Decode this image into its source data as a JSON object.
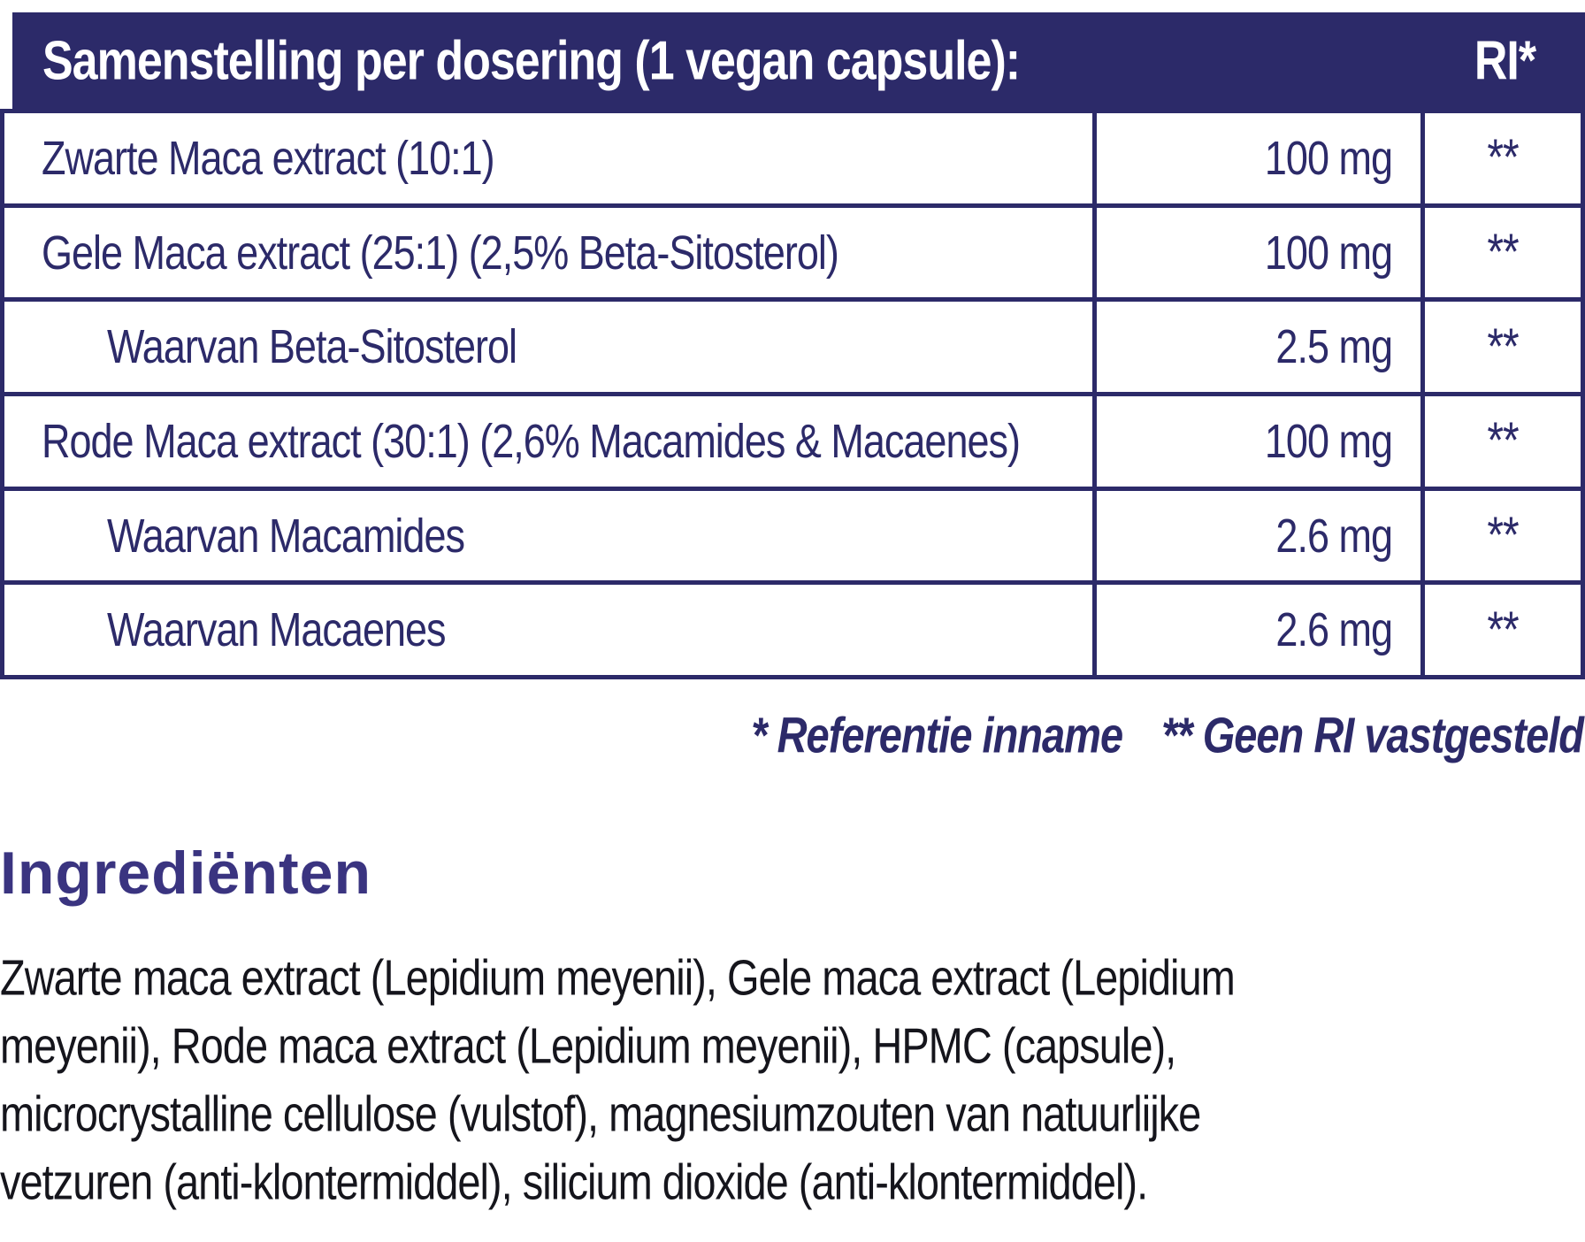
{
  "colors": {
    "navy": "#2c2a69",
    "heading_purple": "#3a3480",
    "body_text": "#15151c",
    "background": "#ffffff"
  },
  "table": {
    "header": {
      "title": "Samenstelling per dosering (1 vegan capsule):",
      "ri_label": "RI*"
    },
    "rows": [
      {
        "name": "Zwarte Maca extract (10:1)",
        "amount": "100 mg",
        "ri": "**"
      },
      {
        "name": "Gele Maca extract (25:1) (2,5% Beta-Sitosterol)",
        "amount": "100 mg",
        "ri": "**"
      },
      {
        "name": "Waarvan Beta-Sitosterol",
        "amount": "2.5 mg",
        "ri": "**"
      },
      {
        "name": "Rode Maca extract (30:1) (2,6% Macamides & Macaenes)",
        "amount": "100 mg",
        "ri": "**"
      },
      {
        "name": "Waarvan Macamides",
        "amount": "2.6 mg",
        "ri": "**"
      },
      {
        "name": "Waarvan Macaenes",
        "amount": "2.6 mg",
        "ri": "**"
      }
    ]
  },
  "footnote": {
    "reference": "* Referentie inname",
    "no_ri": "** Geen RI vastgesteld"
  },
  "ingredients": {
    "heading": "Ingrediënten",
    "lines": [
      "Zwarte maca extract (Lepidium meyenii), Gele maca extract (Lepidium",
      "meyenii), Rode maca extract (Lepidium meyenii), HPMC (capsule),",
      "microcrystalline cellulose (vulstof), magnesiumzouten van natuurlijke",
      "vetzuren (anti-klontermiddel), silicium dioxide (anti-klontermiddel)."
    ]
  }
}
